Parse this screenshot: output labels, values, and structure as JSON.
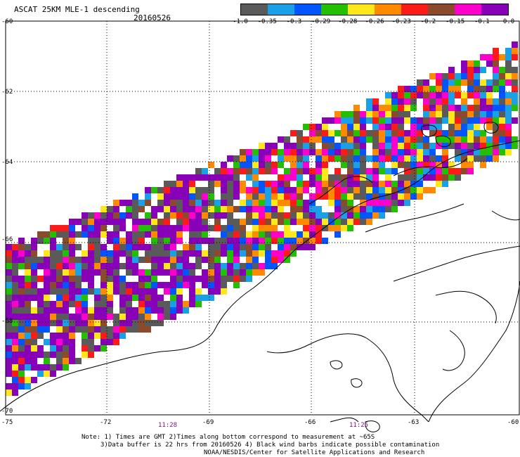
{
  "title": "ASCAT 25KM MLE-1 descending",
  "date": "20160526",
  "colorbar": {
    "colors": [
      "#5a5a5a",
      "#1aa0e6",
      "#0055ff",
      "#22c000",
      "#ffe81a",
      "#ff8a00",
      "#ff1a1a",
      "#8b4a2b",
      "#ff00cc",
      "#8800b8"
    ],
    "labels": [
      "-1.0",
      "-0.35",
      "-0.3",
      "-0.29",
      "-0.28",
      "-0.26",
      "-0.23",
      "-0.2",
      "-0.15",
      "-0.1",
      "0.0"
    ]
  },
  "lat_labels": [
    "-60",
    "-62",
    "-64",
    "-66",
    "-68",
    "-70"
  ],
  "lon_labels": [
    "-75",
    "-72",
    "-69",
    "-66",
    "-63",
    "-60"
  ],
  "times": [
    "11:28",
    "11:25"
  ],
  "notes": [
    "Note: 1) Times are GMT 2)Times along bottom correspond to measurement at ~65S",
    "3)Data buffer is 22 hrs from 20160526 4) Black wind barbs indicate possible contamination",
    "NOAA/NESDIS/Center for Satellite Applications and Research"
  ]
}
